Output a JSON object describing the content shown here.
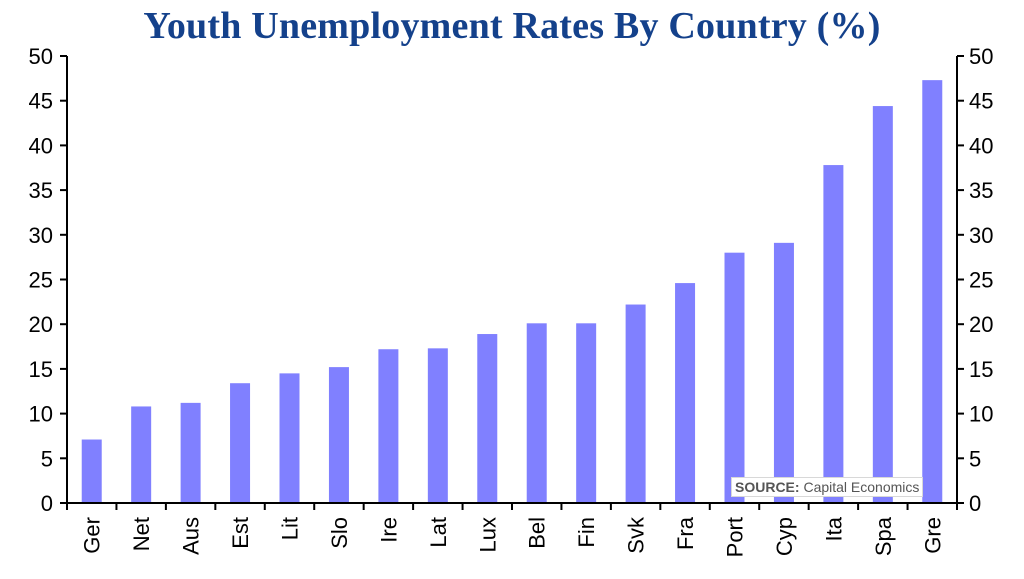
{
  "chart_data": {
    "type": "bar",
    "title": "Youth Unemployment Rates By Country (%)",
    "categories": [
      "Ger",
      "Net",
      "Aus",
      "Est",
      "Lit",
      "Slo",
      "Ire",
      "Lat",
      "Lux",
      "Bel",
      "Fin",
      "Svk",
      "Fra",
      "Port",
      "Cyp",
      "Ita",
      "Spa",
      "Gre"
    ],
    "values": [
      7.1,
      10.8,
      11.2,
      13.4,
      14.5,
      15.2,
      17.2,
      17.3,
      18.9,
      20.1,
      20.1,
      22.2,
      24.6,
      28.0,
      29.1,
      37.8,
      44.4,
      47.3
    ],
    "ylim": [
      0,
      50
    ],
    "yticks": [
      "0",
      "5",
      "10",
      "15",
      "20",
      "25",
      "30",
      "35",
      "40",
      "45",
      "50"
    ],
    "bar_color": "#8080ff",
    "grid": false,
    "dual_y_axis": true
  },
  "source": {
    "label": "SOURCE:",
    "text": "Capital Economics"
  }
}
